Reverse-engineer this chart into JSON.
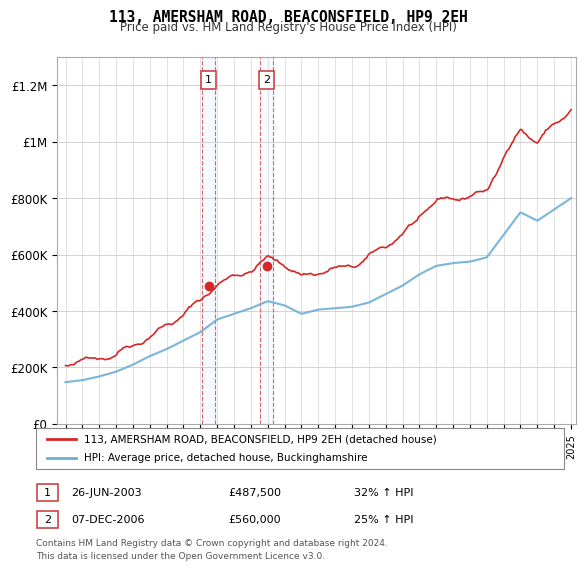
{
  "title": "113, AMERSHAM ROAD, BEACONSFIELD, HP9 2EH",
  "subtitle": "Price paid vs. HM Land Registry's House Price Index (HPI)",
  "legend_line1": "113, AMERSHAM ROAD, BEACONSFIELD, HP9 2EH (detached house)",
  "legend_line2": "HPI: Average price, detached house, Buckinghamshire",
  "annotation1_label": "1",
  "annotation1_date": "26-JUN-2003",
  "annotation1_price": "£487,500",
  "annotation1_hpi": "32% ↑ HPI",
  "annotation2_label": "2",
  "annotation2_date": "07-DEC-2006",
  "annotation2_price": "£560,000",
  "annotation2_hpi": "25% ↑ HPI",
  "footnote1": "Contains HM Land Registry data © Crown copyright and database right 2024.",
  "footnote2": "This data is licensed under the Open Government Licence v3.0.",
  "sale1_year": 2003.49,
  "sale1_value": 487500,
  "sale2_year": 2006.93,
  "sale2_value": 560000,
  "hpi_color": "#6baed6",
  "price_color": "#d62728",
  "sale_dot_color": "#d62728",
  "shade_color": "#ddeeff",
  "ylim": [
    0,
    1300000
  ],
  "yticks": [
    0,
    200000,
    400000,
    600000,
    800000,
    1000000,
    1200000
  ],
  "ytick_labels": [
    "£0",
    "£200K",
    "£400K",
    "£600K",
    "£800K",
    "£1M",
    "£1.2M"
  ],
  "xstart": 1995,
  "xend": 2025
}
